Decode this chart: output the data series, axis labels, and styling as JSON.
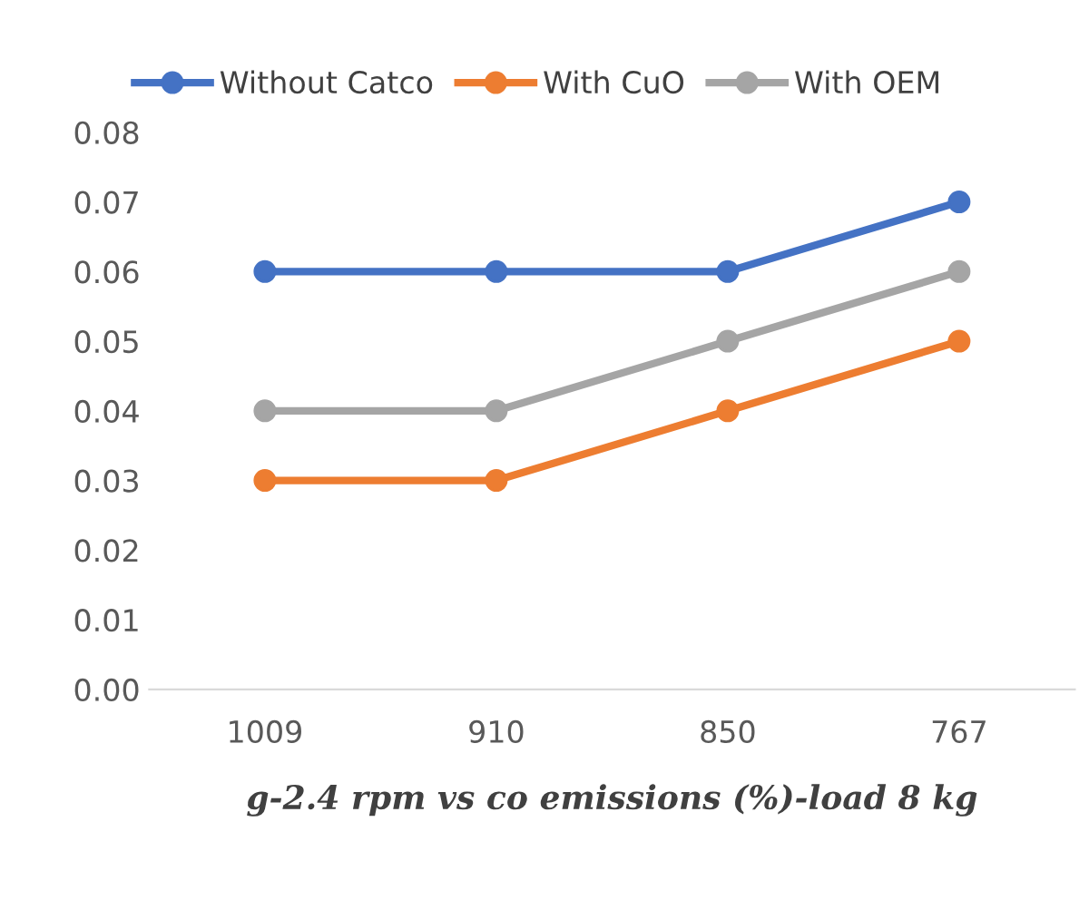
{
  "chart_data": {
    "type": "line",
    "xlabel": "g-2.4 rpm vs co emissions (%)-load 8 kg",
    "categories": [
      "1009",
      "910",
      "850",
      "767"
    ],
    "series": [
      {
        "name": "Without Catco",
        "color": "#4472c4",
        "values": [
          0.06,
          0.06,
          0.06,
          0.07
        ]
      },
      {
        "name": "With CuO",
        "color": "#ed7d31",
        "values": [
          0.03,
          0.03,
          0.04,
          0.05
        ]
      },
      {
        "name": "With OEM",
        "color": "#a5a5a5",
        "values": [
          0.04,
          0.04,
          0.05,
          0.06
        ]
      }
    ],
    "ylim": [
      0,
      0.08
    ],
    "yticks": [
      {
        "value": 0,
        "label": "0.00"
      },
      {
        "value": 0.01,
        "label": "0.01"
      },
      {
        "value": 0.02,
        "label": "0.02"
      },
      {
        "value": 0.03,
        "label": "0.03"
      },
      {
        "value": 0.04,
        "label": "0.04"
      },
      {
        "value": 0.05,
        "label": "0.05"
      },
      {
        "value": 0.06,
        "label": "0.06"
      },
      {
        "value": 0.07,
        "label": "0.07"
      },
      {
        "value": 0.08,
        "label": "0.08"
      }
    ],
    "grid": false,
    "legend": "top",
    "marker": "circle",
    "line_style": "solid"
  }
}
